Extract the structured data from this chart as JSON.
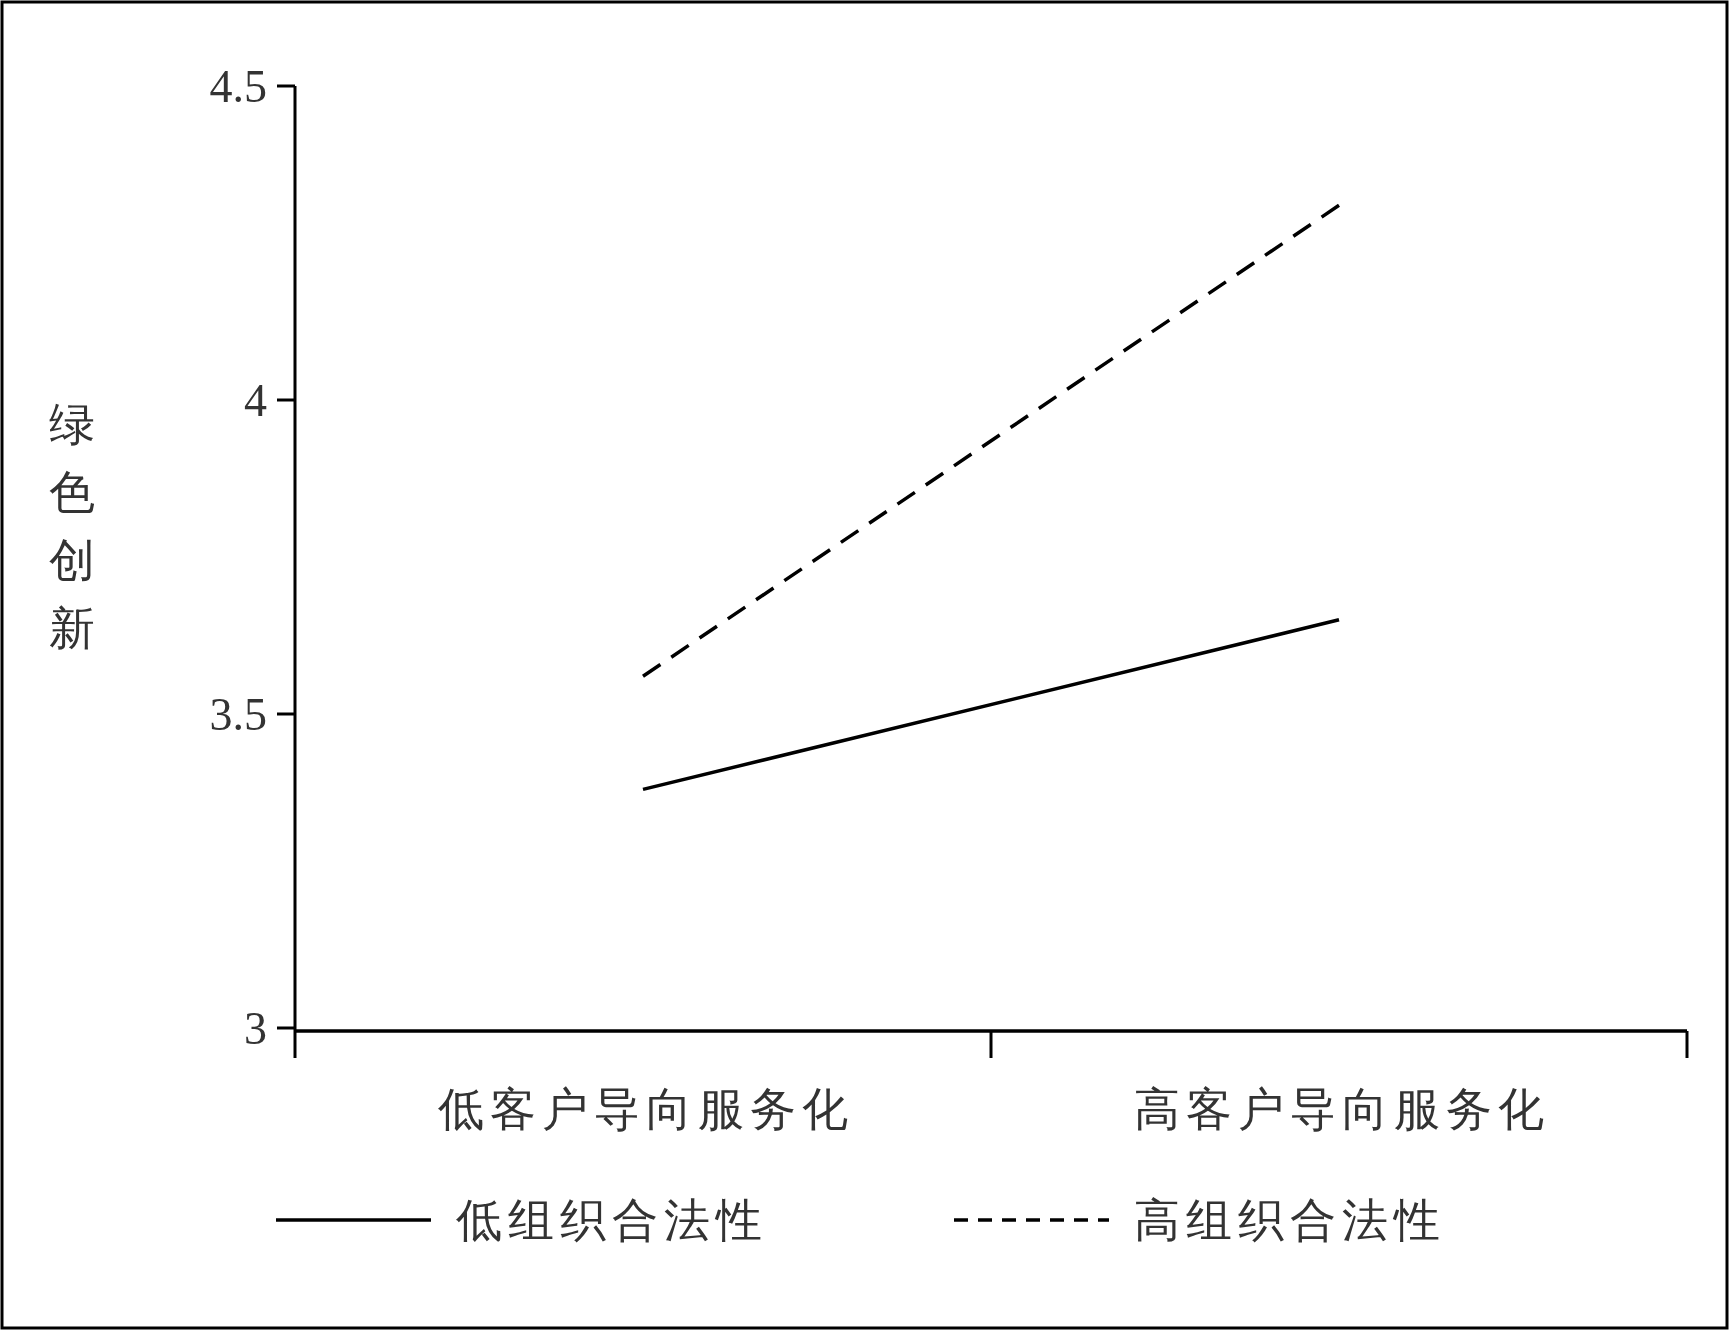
{
  "chart_data": {
    "type": "line",
    "ylabel": "绿色创新",
    "categories": [
      "低客户导向服务化",
      "高客户导向服务化"
    ],
    "ylim": [
      3,
      4.5
    ],
    "yticks": [
      3,
      3.5,
      4,
      4.5
    ],
    "legend": "bottom",
    "series": [
      {
        "name": "低组织合法性",
        "color": "#000000",
        "line_style": "solid",
        "values": [
          3.38,
          3.65
        ]
      },
      {
        "name": "高组织合法性",
        "color": "#000000",
        "line_style": "dashed",
        "values": [
          3.56,
          4.31
        ]
      }
    ]
  }
}
